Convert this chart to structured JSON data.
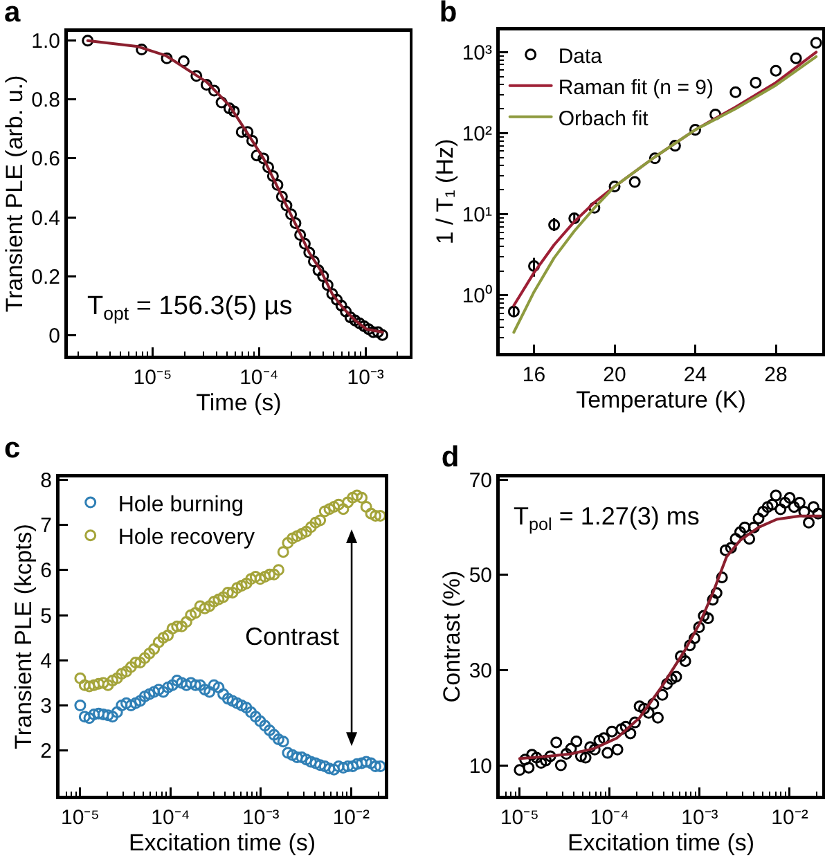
{
  "chart_data": [
    {
      "type": "scatter",
      "title": "a",
      "xlabel": "Time (s)",
      "ylabel": "Transient PLE (arb. u.)",
      "log": "x",
      "marker": "circle",
      "xlim": [
        1.6e-06,
        0.0026
      ],
      "xticks": [
        {
          "value": 2e-06,
          "label": null
        },
        {
          "value": 3e-06,
          "label": null
        },
        {
          "value": 4e-06,
          "label": null
        },
        {
          "value": 5e-06,
          "label": null
        },
        {
          "value": 6e-06,
          "label": null
        },
        {
          "value": 7e-06,
          "label": null
        },
        {
          "value": 8e-06,
          "label": null
        },
        {
          "value": 9e-06,
          "label": null
        },
        {
          "value": 1e-05,
          "label": "10⁻⁵"
        },
        {
          "value": 2e-05,
          "label": null
        },
        {
          "value": 3e-05,
          "label": null
        },
        {
          "value": 4e-05,
          "label": null
        },
        {
          "value": 5e-05,
          "label": null
        },
        {
          "value": 6e-05,
          "label": null
        },
        {
          "value": 7e-05,
          "label": null
        },
        {
          "value": 8e-05,
          "label": null
        },
        {
          "value": 9e-05,
          "label": null
        },
        {
          "value": 0.0001,
          "label": "10⁻⁴"
        },
        {
          "value": 0.0002,
          "label": null
        },
        {
          "value": 0.0003,
          "label": null
        },
        {
          "value": 0.0004,
          "label": null
        },
        {
          "value": 0.0005,
          "label": null
        },
        {
          "value": 0.0006,
          "label": null
        },
        {
          "value": 0.0007,
          "label": null
        },
        {
          "value": 0.0008,
          "label": null
        },
        {
          "value": 0.0009,
          "label": null
        },
        {
          "value": 0.001,
          "label": "10⁻³"
        },
        {
          "value": 0.002,
          "label": null
        }
      ],
      "ylim": [
        -0.07,
        1.03
      ],
      "yticks": [
        0,
        0.2,
        0.4,
        0.6,
        0.8,
        {
          "value": 1,
          "label": "1.0"
        }
      ],
      "annotations": [
        "T$_{opt}$ = 156.3(5) µs"
      ],
      "series": [
        {
          "type": "scatter",
          "color": "#000000",
          "x": [
            2.46e-06,
            7.9e-06,
            1.36e-05,
            1.96e-05,
            2.58e-05,
            3.21e-05,
            3.79e-05,
            4.44e-05,
            5.26e-05,
            5.81e-05,
            6.87e-05,
            7.81e-05,
            8.63e-05,
            9.52e-05,
            0.00011,
            0.000122,
            0.000135,
            0.000149,
            0.000164,
            0.000181,
            0.0002,
            0.00022,
            0.000243,
            0.000269,
            0.000296,
            0.000327,
            0.000361,
            0.000399,
            0.00044,
            0.000486,
            0.000537,
            0.000593,
            0.000653,
            0.000721,
            0.000796,
            0.000879,
            0.00097,
            0.00107,
            0.00118,
            0.00131,
            0.00144
          ],
          "values": [
            1.0,
            0.97,
            0.94,
            0.93,
            0.88,
            0.85,
            0.83,
            0.79,
            0.77,
            0.76,
            0.69,
            0.69,
            0.66,
            0.61,
            0.6,
            0.57,
            0.54,
            0.51,
            0.47,
            0.44,
            0.41,
            0.38,
            0.34,
            0.31,
            0.28,
            0.25,
            0.22,
            0.2,
            0.17,
            0.14,
            0.12,
            0.1,
            0.08,
            0.06,
            0.05,
            0.04,
            0.03,
            0.02,
            0.01,
            0.01,
            0.0
          ]
        },
        {
          "type": "line",
          "marker": "none",
          "color": "#8b1f2e",
          "x": [
            2.46e-06,
            7.3e-06,
            1.32e-05,
            1.96e-05,
            3.21e-05,
            5.26e-05,
            8.63e-05,
            0.00011,
            0.000141,
            0.000181,
            0.000232,
            0.000296,
            0.000379,
            0.000486,
            0.000622,
            0.000796,
            0.00102,
            0.00144
          ],
          "values": [
            1.0,
            0.98,
            0.95,
            0.91,
            0.86,
            0.78,
            0.66,
            0.6,
            0.52,
            0.44,
            0.36,
            0.28,
            0.22,
            0.14,
            0.09,
            0.05,
            0.02,
            0.01
          ]
        }
      ]
    },
    {
      "type": "scatter",
      "title": "b",
      "xlabel": "Temperature (K)",
      "ylabel": "1 / T₁ (Hz)",
      "log": "y",
      "marker": "circle",
      "legend": "top left",
      "xlim": [
        14.3,
        30.3
      ],
      "xticks": [
        16,
        20,
        24,
        28
      ],
      "ylim": [
        0.195,
        1850
      ],
      "yticks": [
        {
          "value": 0.3,
          "label": null
        },
        {
          "value": 0.4,
          "label": null
        },
        {
          "value": 0.5,
          "label": null
        },
        {
          "value": 0.6,
          "label": null
        },
        {
          "value": 0.7,
          "label": null
        },
        {
          "value": 0.8,
          "label": null
        },
        {
          "value": 0.9,
          "label": null
        },
        {
          "value": 1,
          "label": "10⁰"
        },
        {
          "value": 2,
          "label": null
        },
        {
          "value": 3,
          "label": null
        },
        {
          "value": 4,
          "label": null
        },
        {
          "value": 5,
          "label": null
        },
        {
          "value": 6,
          "label": null
        },
        {
          "value": 7,
          "label": null
        },
        {
          "value": 8,
          "label": null
        },
        {
          "value": 9,
          "label": null
        },
        {
          "value": 10,
          "label": "10¹"
        },
        {
          "value": 20,
          "label": null
        },
        {
          "value": 30,
          "label": null
        },
        {
          "value": 40,
          "label": null
        },
        {
          "value": 50,
          "label": null
        },
        {
          "value": 60,
          "label": null
        },
        {
          "value": 70,
          "label": null
        },
        {
          "value": 80,
          "label": null
        },
        {
          "value": 90,
          "label": null
        },
        {
          "value": 100,
          "label": "10²"
        },
        {
          "value": 200,
          "label": null
        },
        {
          "value": 300,
          "label": null
        },
        {
          "value": 400,
          "label": null
        },
        {
          "value": 500,
          "label": null
        },
        {
          "value": 600,
          "label": null
        },
        {
          "value": 700,
          "label": null
        },
        {
          "value": 800,
          "label": null
        },
        {
          "value": 900,
          "label": null
        },
        {
          "value": 1000,
          "label": "10³"
        }
      ],
      "series": [
        {
          "type": "scatter",
          "name": "Data",
          "color": "#000000",
          "x": [
            15,
            16,
            17,
            18,
            19,
            20,
            21,
            22,
            23,
            24,
            25,
            26,
            27,
            28,
            29,
            30
          ],
          "values": [
            0.63,
            2.3,
            7.4,
            8.9,
            12,
            22,
            25,
            49,
            70,
            110,
            170,
            320,
            420,
            590,
            840,
            1300
          ],
          "errors": [
            [
              0.55,
              0.72
            ],
            [
              1.7,
              2.9
            ],
            [
              6.2,
              9.0
            ],
            [
              7.6,
              10.2
            ],
            null,
            null,
            null,
            null,
            null,
            null,
            null,
            null,
            null,
            null,
            null,
            null
          ]
        },
        {
          "type": "line",
          "marker": "none",
          "name": "Raman fit (n = 9)",
          "color": "#9e1f35",
          "x": [
            15,
            16,
            17,
            18,
            19,
            20,
            22,
            24,
            26,
            28,
            30
          ],
          "values": [
            0.75,
            1.9,
            4.2,
            8.1,
            14,
            22,
            51,
            110,
            210,
            420,
            1000
          ]
        },
        {
          "type": "line",
          "marker": "none",
          "name": "Orbach fit",
          "color": "#8e9b3f",
          "x": [
            15,
            16,
            17,
            18,
            19,
            20,
            22,
            24,
            26,
            28,
            30
          ],
          "values": [
            0.35,
            1.1,
            2.9,
            6.2,
            12,
            22,
            51,
            110,
            200,
            390,
            880
          ]
        }
      ]
    },
    {
      "type": "scatter",
      "title": "c",
      "xlabel": "Excitation time (s)",
      "ylabel": "Transient PLE (kcpts)",
      "log": "x",
      "marker": "circle",
      "legend": "top left",
      "xlim": [
        5.9e-06,
        0.0236
      ],
      "xticks": [
        {
          "value": 7e-06,
          "label": null
        },
        {
          "value": 8e-06,
          "label": null
        },
        {
          "value": 9e-06,
          "label": null
        },
        {
          "value": 1e-05,
          "label": "10⁻⁵"
        },
        {
          "value": 2e-05,
          "label": null
        },
        {
          "value": 3e-05,
          "label": null
        },
        {
          "value": 4e-05,
          "label": null
        },
        {
          "value": 5e-05,
          "label": null
        },
        {
          "value": 6e-05,
          "label": null
        },
        {
          "value": 7e-05,
          "label": null
        },
        {
          "value": 8e-05,
          "label": null
        },
        {
          "value": 9e-05,
          "label": null
        },
        {
          "value": 0.0001,
          "label": "10⁻⁴"
        },
        {
          "value": 0.0002,
          "label": null
        },
        {
          "value": 0.0003,
          "label": null
        },
        {
          "value": 0.0004,
          "label": null
        },
        {
          "value": 0.0005,
          "label": null
        },
        {
          "value": 0.0006,
          "label": null
        },
        {
          "value": 0.0007,
          "label": null
        },
        {
          "value": 0.0008,
          "label": null
        },
        {
          "value": 0.0009,
          "label": null
        },
        {
          "value": 0.001,
          "label": "10⁻³"
        },
        {
          "value": 0.002,
          "label": null
        },
        {
          "value": 0.003,
          "label": null
        },
        {
          "value": 0.004,
          "label": null
        },
        {
          "value": 0.005,
          "label": null
        },
        {
          "value": 0.006,
          "label": null
        },
        {
          "value": 0.007,
          "label": null
        },
        {
          "value": 0.008,
          "label": null
        },
        {
          "value": 0.009,
          "label": null
        },
        {
          "value": 0.01,
          "label": "10⁻²"
        },
        {
          "value": 0.02,
          "label": null
        }
      ],
      "ylim": [
        1.0,
        8.05
      ],
      "yticks": [
        2,
        3,
        4,
        5,
        6,
        7,
        8
      ],
      "annotations": [
        "Contrast"
      ],
      "series": [
        {
          "type": "scatter",
          "name": "Hole burning",
          "color": "#2f7fb5",
          "x": [
            1e-05,
            1.12e-05,
            1.26e-05,
            1.42e-05,
            1.6e-05,
            1.8e-05,
            2.03e-05,
            2.28e-05,
            2.56e-05,
            2.88e-05,
            3.24e-05,
            3.65e-05,
            4.1e-05,
            4.61e-05,
            5.19e-05,
            5.83e-05,
            6.57e-05,
            7.39e-05,
            8.32e-05,
            9.35e-05,
            0.000105,
            0.000118,
            0.000133,
            0.00015,
            0.000168,
            0.000189,
            0.000213,
            0.00024,
            0.00027,
            0.000303,
            0.000341,
            0.000384,
            0.000432,
            0.000486,
            0.000546,
            0.000614,
            0.000692,
            0.000778,
            0.000875,
            0.000984,
            0.00111,
            0.00125,
            0.0014,
            0.00157,
            0.00177,
            0.00199,
            0.00224,
            0.00252,
            0.00284,
            0.00319,
            0.00359,
            0.00404,
            0.00454,
            0.00511,
            0.00575,
            0.00646,
            0.00727,
            0.00818,
            0.0092,
            0.0104,
            0.0116,
            0.0131,
            0.0147,
            0.0166,
            0.0186,
            0.021
          ],
          "values": [
            3.0,
            2.75,
            2.72,
            2.8,
            2.82,
            2.8,
            2.78,
            2.75,
            2.85,
            3.0,
            3.05,
            3.0,
            3.05,
            3.1,
            3.2,
            3.25,
            3.3,
            3.35,
            3.3,
            3.4,
            3.45,
            3.55,
            3.5,
            3.45,
            3.5,
            3.45,
            3.45,
            3.35,
            3.3,
            3.45,
            3.4,
            3.25,
            3.15,
            3.1,
            3.05,
            3.0,
            2.95,
            2.85,
            2.75,
            2.65,
            2.55,
            2.45,
            2.35,
            2.25,
            2.2,
            1.95,
            1.9,
            1.85,
            1.85,
            1.8,
            1.75,
            1.72,
            1.68,
            1.65,
            1.6,
            1.58,
            1.65,
            1.62,
            1.65,
            1.65,
            1.7,
            1.72,
            1.75,
            1.72,
            1.65,
            1.65
          ]
        },
        {
          "type": "scatter",
          "name": "Hole recovery",
          "color": "#a4a43a",
          "x": [
            1e-05,
            1.12e-05,
            1.26e-05,
            1.42e-05,
            1.6e-05,
            1.8e-05,
            2.03e-05,
            2.28e-05,
            2.56e-05,
            2.88e-05,
            3.24e-05,
            3.65e-05,
            4.1e-05,
            4.61e-05,
            5.19e-05,
            5.83e-05,
            6.57e-05,
            7.39e-05,
            8.32e-05,
            9.35e-05,
            0.000105,
            0.000118,
            0.000133,
            0.00015,
            0.000168,
            0.000189,
            0.000213,
            0.00024,
            0.00027,
            0.000303,
            0.000341,
            0.000384,
            0.000432,
            0.000486,
            0.000546,
            0.000614,
            0.000692,
            0.000778,
            0.000875,
            0.000984,
            0.00111,
            0.00125,
            0.0014,
            0.00157,
            0.00177,
            0.00199,
            0.00224,
            0.00252,
            0.00284,
            0.00319,
            0.00359,
            0.00404,
            0.00454,
            0.00511,
            0.00575,
            0.00646,
            0.00727,
            0.00818,
            0.0092,
            0.0104,
            0.0116,
            0.0131,
            0.0147,
            0.0166,
            0.0186,
            0.021
          ],
          "values": [
            3.6,
            3.45,
            3.42,
            3.45,
            3.48,
            3.5,
            3.45,
            3.55,
            3.6,
            3.7,
            3.75,
            3.85,
            3.95,
            3.95,
            4.05,
            4.15,
            4.25,
            4.4,
            4.5,
            4.55,
            4.7,
            4.75,
            4.75,
            4.85,
            5.0,
            5.05,
            5.2,
            5.15,
            5.2,
            5.3,
            5.35,
            5.4,
            5.5,
            5.5,
            5.6,
            5.65,
            5.7,
            5.8,
            5.85,
            5.8,
            5.85,
            5.9,
            5.9,
            6.0,
            6.4,
            6.6,
            6.7,
            6.75,
            6.8,
            6.85,
            6.95,
            7.05,
            7.1,
            7.3,
            7.35,
            7.4,
            7.45,
            7.35,
            7.5,
            7.6,
            7.65,
            7.6,
            7.4,
            7.25,
            7.2,
            7.2
          ]
        }
      ]
    },
    {
      "type": "scatter",
      "title": "d",
      "xlabel": "Excitation time (s)",
      "ylabel": "Contrast (%)",
      "log": "x",
      "marker": "circle",
      "xlim": [
        6e-06,
        0.023
      ],
      "xticks": [
        {
          "value": 7e-06,
          "label": null
        },
        {
          "value": 8e-06,
          "label": null
        },
        {
          "value": 9e-06,
          "label": null
        },
        {
          "value": 1e-05,
          "label": "10⁻⁵"
        },
        {
          "value": 2e-05,
          "label": null
        },
        {
          "value": 3e-05,
          "label": null
        },
        {
          "value": 4e-05,
          "label": null
        },
        {
          "value": 5e-05,
          "label": null
        },
        {
          "value": 6e-05,
          "label": null
        },
        {
          "value": 7e-05,
          "label": null
        },
        {
          "value": 8e-05,
          "label": null
        },
        {
          "value": 9e-05,
          "label": null
        },
        {
          "value": 0.0001,
          "label": "10⁻⁴"
        },
        {
          "value": 0.0002,
          "label": null
        },
        {
          "value": 0.0003,
          "label": null
        },
        {
          "value": 0.0004,
          "label": null
        },
        {
          "value": 0.0005,
          "label": null
        },
        {
          "value": 0.0006,
          "label": null
        },
        {
          "value": 0.0007,
          "label": null
        },
        {
          "value": 0.0008,
          "label": null
        },
        {
          "value": 0.0009,
          "label": null
        },
        {
          "value": 0.001,
          "label": "10⁻³"
        },
        {
          "value": 0.002,
          "label": null
        },
        {
          "value": 0.003,
          "label": null
        },
        {
          "value": 0.004,
          "label": null
        },
        {
          "value": 0.005,
          "label": null
        },
        {
          "value": 0.006,
          "label": null
        },
        {
          "value": 0.007,
          "label": null
        },
        {
          "value": 0.008,
          "label": null
        },
        {
          "value": 0.009,
          "label": null
        },
        {
          "value": 0.01,
          "label": "10⁻²"
        },
        {
          "value": 0.02,
          "label": null
        }
      ],
      "ylim": [
        3.6,
        70.5
      ],
      "yticks": [
        10,
        30,
        50,
        70
      ],
      "annotations": [
        "T$_{pol}$ = 1.27(3) ms"
      ],
      "series": [
        {
          "type": "scatter",
          "color": "#000000",
          "x": [
            1e-05,
            1.15e-05,
            1.26e-05,
            1.37e-05,
            1.54e-05,
            1.73e-05,
            1.95e-05,
            2.19e-05,
            2.55e-05,
            2.87e-05,
            3.3e-05,
            3.72e-05,
            4.27e-05,
            4.8e-05,
            5.4e-05,
            6.07e-05,
            6.82e-05,
            7.67e-05,
            8.62e-05,
            9.46e-05,
            0.000106,
            0.000122,
            0.000135,
            0.000151,
            0.00017,
            0.000191,
            0.000215,
            0.000241,
            0.000271,
            0.000305,
            0.000343,
            0.000385,
            0.000433,
            0.000487,
            0.000548,
            0.000616,
            0.000692,
            0.000778,
            0.000875,
            0.000984,
            0.00111,
            0.00124,
            0.0014,
            0.00154,
            0.00177,
            0.00194,
            0.00223,
            0.00251,
            0.00282,
            0.00317,
            0.00356,
            0.00401,
            0.00451,
            0.00507,
            0.00569,
            0.0064,
            0.00703,
            0.00791,
            0.00889,
            0.01,
            0.0112,
            0.0129,
            0.0145,
            0.0163,
            0.0184,
            0.0207
          ],
          "values": [
            9.0,
            11.2,
            9.5,
            12.2,
            11.6,
            10.5,
            11.0,
            11.9,
            14.8,
            10.0,
            12.4,
            13.5,
            15.0,
            11.9,
            11.6,
            13.8,
            13.3,
            15.2,
            15.7,
            12.6,
            17.1,
            13.3,
            17.6,
            18.1,
            16.7,
            19.0,
            22.4,
            21.9,
            21.0,
            22.9,
            20.0,
            24.8,
            27.1,
            28.1,
            28.6,
            32.9,
            31.9,
            35.2,
            36.7,
            39.0,
            41.4,
            40.9,
            44.8,
            46.2,
            49.5,
            55.2,
            55.7,
            57.6,
            59.0,
            60.0,
            57.6,
            60.0,
            61.9,
            63.3,
            64.3,
            64.8,
            66.7,
            63.8,
            65.2,
            66.2,
            64.3,
            65.2,
            63.3,
            61.0,
            64.3,
            62.9
          ]
        },
        {
          "type": "line",
          "marker": "none",
          "color": "#8b1f2e",
          "x": [
            1e-05,
            2.07e-05,
            3.72e-05,
            6.67e-05,
            0.00012,
            0.000215,
            0.000385,
            0.000692,
            0.00101,
            0.0014,
            0.00199,
            0.00282,
            0.00451,
            0.0072,
            0.0129,
            0.0219
          ],
          "values": [
            11.4,
            11.9,
            12.4,
            13.5,
            15.7,
            20.0,
            26.7,
            34.3,
            40.0,
            46.2,
            53.8,
            57.3,
            60.0,
            61.7,
            62.4,
            62.4
          ]
        }
      ]
    }
  ]
}
